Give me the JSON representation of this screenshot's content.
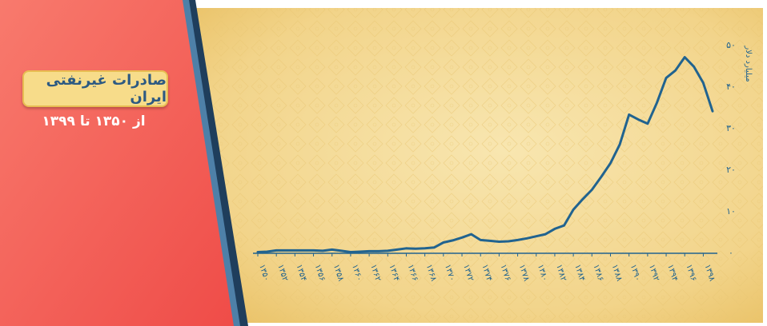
{
  "panel": {
    "title": "صادرات غیرنفتی ایران",
    "subtitle": "از ۱۳۵۰ تا ۱۳۹۹"
  },
  "colors": {
    "panel_red": "#ef4c48",
    "panel_red_light": "#f87a6d",
    "chart_bg": "#f5dc98",
    "line": "#21638f",
    "stripe_dark": "#2d5277",
    "stripe_light": "#4e80a8",
    "title_box": "#f7dc8a",
    "title_text": "#2d5a82"
  },
  "chart_data": {
    "type": "line",
    "ylabel": "میلیارد دلار",
    "ylim": [
      0,
      50
    ],
    "yticks": [
      0,
      10,
      20,
      30,
      40,
      50
    ],
    "ytick_labels": [
      "۰",
      "۱۰",
      "۲۰",
      "۳۰",
      "۴۰",
      "۵۰"
    ],
    "xticks": [
      1350,
      1352,
      1354,
      1356,
      1358,
      1360,
      1362,
      1364,
      1366,
      1368,
      1370,
      1372,
      1374,
      1376,
      1378,
      1380,
      1382,
      1384,
      1386,
      1388,
      1390,
      1392,
      1394,
      1396,
      1398
    ],
    "xtick_labels": [
      "۱۳۵۰",
      "۱۳۵۲",
      "۱۳۵۴",
      "۱۳۵۶",
      "۱۳۵۸",
      "۱۳۶۰",
      "۱۳۶۲",
      "۱۳۶۴",
      "۱۳۶۶",
      "۱۳۶۸",
      "۱۳۷۰",
      "۱۳۷۲",
      "۱۳۷۴",
      "۱۳۷۶",
      "۱۳۷۸",
      "۱۳۸۰",
      "۱۳۸۲",
      "۱۳۸۴",
      "۱۳۸۶",
      "۱۳۸۸",
      "۱۳۹۰",
      "۱۳۹۲",
      "۱۳۹۴",
      "۱۳۹۶",
      "۱۳۹۸"
    ],
    "series": [
      {
        "x": [
          1350,
          1351,
          1352,
          1353,
          1354,
          1355,
          1356,
          1357,
          1358,
          1359,
          1360,
          1361,
          1362,
          1363,
          1364,
          1365,
          1366,
          1367,
          1368,
          1369,
          1370,
          1371,
          1372,
          1373,
          1374,
          1375,
          1376,
          1377,
          1378,
          1379,
          1380,
          1381,
          1382,
          1383,
          1384,
          1385,
          1386,
          1387,
          1388,
          1389,
          1390,
          1391,
          1392,
          1393,
          1394,
          1395,
          1396,
          1397,
          1398,
          1399
        ],
        "values": [
          0.1,
          0.2,
          0.5,
          0.5,
          0.5,
          0.5,
          0.5,
          0.4,
          0.7,
          0.4,
          0.1,
          0.2,
          0.3,
          0.3,
          0.4,
          0.7,
          1.0,
          0.9,
          1.0,
          1.2,
          2.4,
          2.9,
          3.6,
          4.4,
          3.0,
          2.8,
          2.6,
          2.7,
          3.0,
          3.4,
          3.9,
          4.4,
          5.7,
          6.5,
          10.3,
          12.8,
          15.1,
          18.2,
          21.5,
          26.0,
          33.2,
          32.0,
          31.0,
          36.0,
          42.0,
          43.8,
          47.0,
          44.7,
          40.8,
          34.0
        ]
      }
    ],
    "grid": false,
    "legend": "none"
  }
}
